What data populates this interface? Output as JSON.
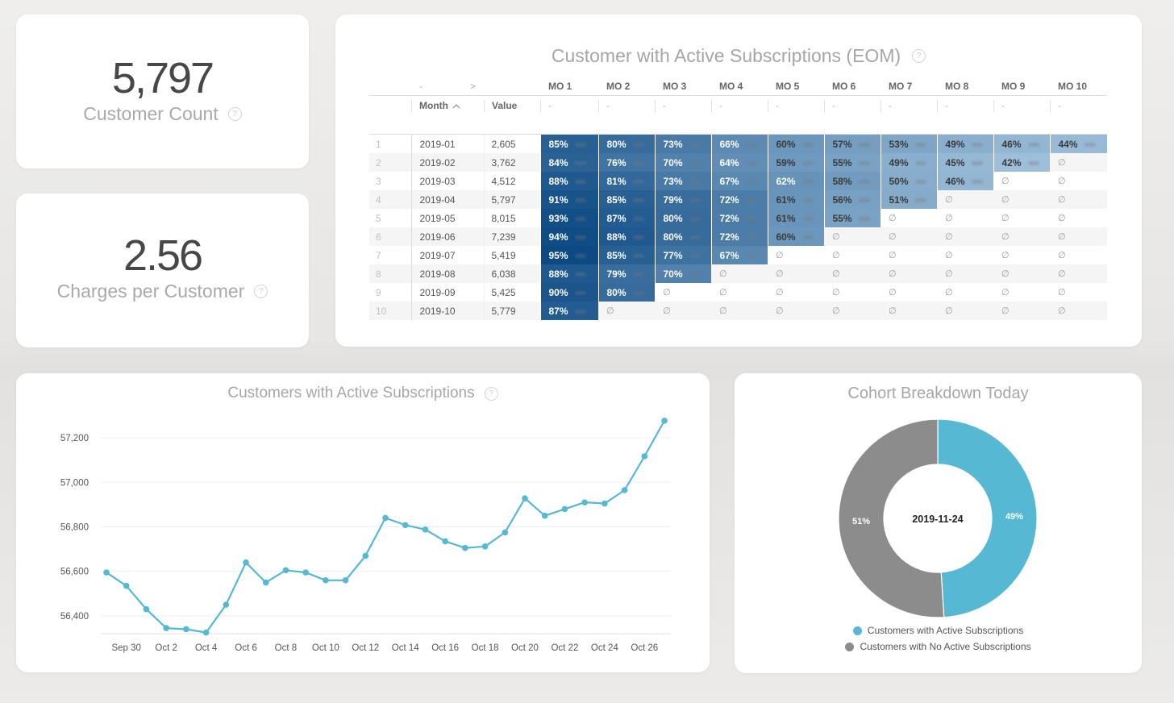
{
  "kpis": [
    {
      "value": "5,797",
      "label": "Customer Count",
      "icon": "help-circle-icon"
    },
    {
      "value": "2.56",
      "label": "Charges per Customer",
      "icon": "help-circle-icon"
    }
  ],
  "colors": {
    "line": "#56b8d3",
    "active": "#56b8d3",
    "inactive": "#8c8c8c",
    "heat_low": "#a3c3dc",
    "heat_high": "#0d4a84",
    "heat_text_light": "#ffffff",
    "heat_text_dark": "#3a3a3a"
  },
  "chart_data": [
    {
      "type": "heatmap",
      "title": "Customer with Active Subscriptions (EOM)",
      "help_icon": "help-circle-icon",
      "pivot_controls": {
        "collapse": "-",
        "expand": ">"
      },
      "row_headers": {
        "month": "Month",
        "value": "Value",
        "sort": "ascending"
      },
      "columns": [
        "MO 1",
        "MO 2",
        "MO 3",
        "MO 4",
        "MO 5",
        "MO 6",
        "MO 7",
        "MO 8",
        "MO 9",
        "MO 10"
      ],
      "column_subheader": "-",
      "null_symbol": "∅",
      "scale": {
        "min": 40,
        "max": 95,
        "light_text_threshold": 62
      },
      "rows": [
        {
          "n": "1",
          "month": "2019-01",
          "value": "2,605",
          "cells": [
            "85%",
            "80%",
            "73%",
            "66%",
            "60%",
            "57%",
            "53%",
            "49%",
            "46%",
            "44%"
          ]
        },
        {
          "n": "2",
          "month": "2019-02",
          "value": "3,762",
          "cells": [
            "84%",
            "76%",
            "70%",
            "64%",
            "59%",
            "55%",
            "49%",
            "45%",
            "42%",
            null
          ]
        },
        {
          "n": "3",
          "month": "2019-03",
          "value": "4,512",
          "cells": [
            "88%",
            "81%",
            "73%",
            "67%",
            "62%",
            "58%",
            "50%",
            "46%",
            null,
            null
          ]
        },
        {
          "n": "4",
          "month": "2019-04",
          "value": "5,797",
          "cells": [
            "91%",
            "85%",
            "79%",
            "72%",
            "61%",
            "56%",
            "51%",
            null,
            null,
            null
          ]
        },
        {
          "n": "5",
          "month": "2019-05",
          "value": "8,015",
          "cells": [
            "93%",
            "87%",
            "80%",
            "72%",
            "61%",
            "55%",
            null,
            null,
            null,
            null
          ]
        },
        {
          "n": "6",
          "month": "2019-06",
          "value": "7,239",
          "cells": [
            "94%",
            "88%",
            "80%",
            "72%",
            "60%",
            null,
            null,
            null,
            null,
            null
          ]
        },
        {
          "n": "7",
          "month": "2019-07",
          "value": "5,419",
          "cells": [
            "95%",
            "85%",
            "77%",
            "67%",
            null,
            null,
            null,
            null,
            null,
            null
          ]
        },
        {
          "n": "8",
          "month": "2019-08",
          "value": "6,038",
          "cells": [
            "88%",
            "79%",
            "70%",
            null,
            null,
            null,
            null,
            null,
            null,
            null
          ]
        },
        {
          "n": "9",
          "month": "2019-09",
          "value": "5,425",
          "cells": [
            "90%",
            "80%",
            null,
            null,
            null,
            null,
            null,
            null,
            null,
            null
          ]
        },
        {
          "n": "10",
          "month": "2019-10",
          "value": "5,779",
          "cells": [
            "87%",
            null,
            null,
            null,
            null,
            null,
            null,
            null,
            null,
            null
          ]
        }
      ]
    },
    {
      "type": "line",
      "title": "Customers with Active Subscriptions",
      "help_icon": "help-circle-icon",
      "x": [
        "Sep 29",
        "Sep 30",
        "Oct 1",
        "Oct 2",
        "Oct 3",
        "Oct 4",
        "Oct 5",
        "Oct 6",
        "Oct 7",
        "Oct 8",
        "Oct 9",
        "Oct 10",
        "Oct 11",
        "Oct 12",
        "Oct 13",
        "Oct 14",
        "Oct 15",
        "Oct 16",
        "Oct 17",
        "Oct 18",
        "Oct 19",
        "Oct 20",
        "Oct 21",
        "Oct 22",
        "Oct 23",
        "Oct 24",
        "Oct 25",
        "Oct 26",
        "Oct 27"
      ],
      "xtick_labels": [
        "Sep 30",
        "Oct 2",
        "Oct 4",
        "Oct 6",
        "Oct 8",
        "Oct 10",
        "Oct 12",
        "Oct 14",
        "Oct 16",
        "Oct 18",
        "Oct 20",
        "Oct 22",
        "Oct 24",
        "Oct 26"
      ],
      "series": [
        {
          "name": "Customers with Active Subscriptions",
          "values": [
            56595,
            56535,
            56430,
            56345,
            56340,
            56325,
            56450,
            56640,
            56550,
            56605,
            56595,
            56560,
            56560,
            56670,
            56840,
            56808,
            56788,
            56735,
            56705,
            56712,
            56775,
            56928,
            56850,
            56880,
            56910,
            56905,
            56965,
            57117,
            57277
          ]
        }
      ],
      "yticks": [
        56400,
        56600,
        56800,
        57000,
        57200
      ],
      "ytick_labels": [
        "56,400",
        "56,600",
        "56,800",
        "57,000",
        "57,200"
      ],
      "ylim": [
        56320,
        57280
      ],
      "xlabel": "",
      "ylabel": "",
      "grid": true,
      "markers": true,
      "legend": "none"
    },
    {
      "type": "pie",
      "donut": true,
      "title": "Cohort Breakdown Today",
      "center_label": "2019-11-24",
      "categories": [
        "Customers with Active Subscriptions",
        "Customers with No Active Subscriptions"
      ],
      "values": [
        49,
        51
      ],
      "labels": [
        "49%",
        "51%"
      ],
      "colors": [
        "#56b8d3",
        "#8c8c8c"
      ],
      "legend": "bottom"
    }
  ]
}
